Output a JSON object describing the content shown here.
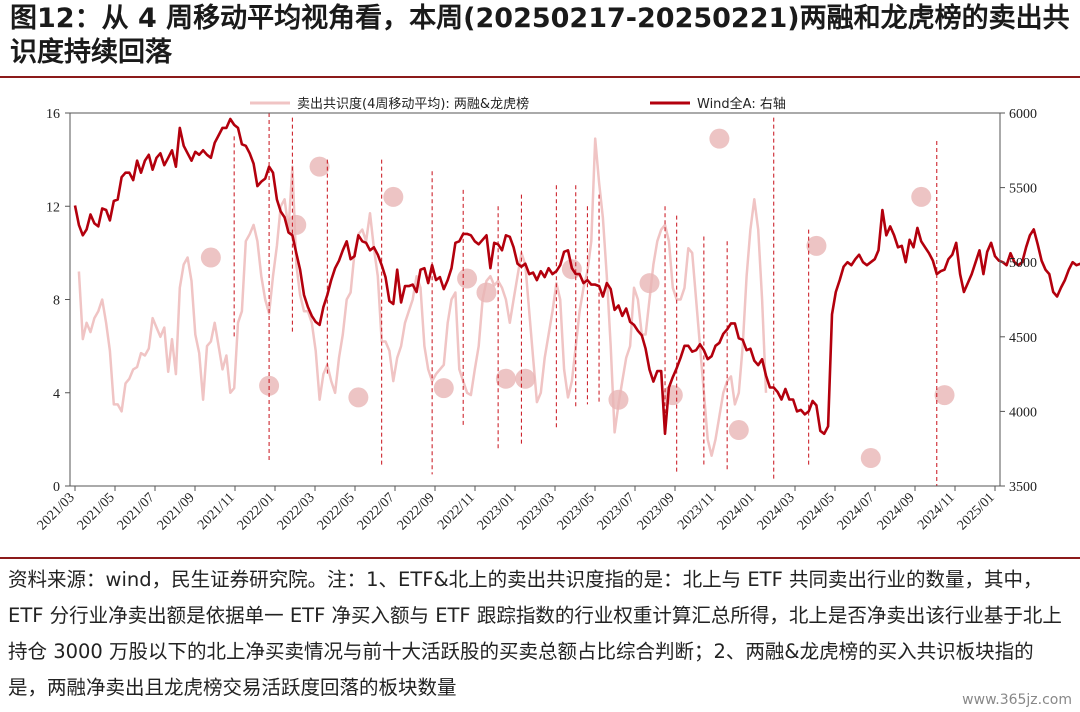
{
  "title": "图12：从 4 周移动平均视角看，本周(20250217-20250221)两融和龙虎榜的卖出共识度持续回落",
  "note": "资料来源：wind，民生证券研究院。注：1、ETF&北上的卖出共识度指的是：北上与 ETF 共同卖出行业的数量，其中，ETF 分行业净卖出额是依据单一 ETF 净买入额与 ETF 跟踪指数的行业权重计算汇总所得，北上是否净卖出该行业基于北上持仓 3000 万股以下的北上净买卖情况与前十大活跃股的买卖总额占比综合判断；2、两融&龙虎榜的买入共识板块指的是，两融净卖出且龙虎榜交易活跃度回落的板块数量",
  "watermark": "www.365jz.com",
  "colors": {
    "consensus": "#f0c4c4",
    "wind": "#b3000d",
    "vline": "#c8101a",
    "circle": "#e9b5b5",
    "rule": "#8c1a1a"
  },
  "chart_data": {
    "type": "line",
    "x_tick_labels": [
      "2021/03",
      "2021/05",
      "2021/07",
      "2021/09",
      "2021/11",
      "2022/01",
      "2022/03",
      "2022/05",
      "2022/07",
      "2022/09",
      "2022/11",
      "2023/01",
      "2023/03",
      "2023/05",
      "2023/07",
      "2023/09",
      "2023/11",
      "2024/01",
      "2024/03",
      "2024/05",
      "2024/07",
      "2024/09",
      "2024/11",
      "2025/01"
    ],
    "left_axis": {
      "ylim": [
        0,
        16
      ],
      "ticks": [
        0,
        4,
        8,
        12,
        16
      ]
    },
    "right_axis": {
      "ylim": [
        3500,
        6000
      ],
      "ticks": [
        3500,
        4000,
        4500,
        5000,
        5500,
        6000
      ]
    },
    "grid": false,
    "legend_position": "top-center",
    "series": [
      {
        "name": "卖出共识度(4周移动平均): 两融&龙虎榜",
        "axis": "left",
        "start_week": 1,
        "values": [
          9.2,
          6.3,
          7.0,
          6.6,
          7.2,
          7.5,
          8.0,
          7.0,
          5.8,
          3.5,
          3.5,
          3.2,
          4.4,
          4.6,
          5.0,
          5.1,
          5.7,
          5.6,
          5.9,
          7.2,
          6.8,
          6.4,
          6.8,
          4.9,
          6.3,
          4.8,
          8.5,
          9.5,
          9.8,
          8.8,
          6.5,
          5.7,
          3.7,
          6.0,
          6.2,
          7.0,
          6.0,
          5.0,
          5.6,
          4.0,
          4.2,
          7.0,
          7.5,
          10.5,
          10.8,
          11.2,
          10.5,
          9.0,
          8.0,
          7.4,
          9.0,
          10.3,
          12.0,
          12.3,
          11.0,
          13.7,
          9.5,
          8.2,
          7.5,
          7.5,
          7.0,
          5.8,
          3.7,
          4.8,
          5.2,
          4.5,
          4.0,
          5.5,
          6.5,
          8.0,
          8.3,
          10.0,
          10.8,
          11.0,
          10.5,
          11.7,
          10.2,
          9.0,
          6.2,
          6.2,
          5.8,
          4.5,
          5.5,
          6.0,
          7.0,
          7.5,
          8.0,
          9.0,
          8.5,
          6.0,
          5.0,
          4.5,
          4.8,
          5.0,
          5.2,
          7.0,
          8.0,
          8.3,
          5.0,
          4.5,
          4.0,
          3.9,
          5.0,
          6.0,
          8.0,
          8.8,
          9.0,
          8.6,
          8.8,
          8.5,
          8.0,
          7.0,
          8.0,
          9.0,
          10.0,
          9.5,
          7.5,
          5.5,
          3.6,
          4.0,
          5.5,
          6.5,
          7.5,
          8.7,
          8.0,
          5.0,
          3.8,
          4.5,
          6.0,
          7.5,
          8.5,
          9.2,
          10.5,
          14.9,
          13.0,
          11.5,
          9.0,
          6.0,
          2.3,
          3.5,
          4.5,
          5.5,
          6.0,
          8.5,
          8.0,
          6.5,
          6.5,
          8.0,
          9.5,
          10.5,
          11.0,
          11.2,
          10.5,
          8.5,
          8.0,
          8.0,
          8.5,
          10.2,
          10.0,
          8.0,
          6.0,
          4.0,
          2.0,
          1.3,
          2.0,
          3.0,
          4.0,
          4.5,
          4.7,
          3.5,
          4.0,
          6.0,
          9.0,
          11.0,
          12.3,
          11.0,
          8.0,
          4.0
        ]
      },
      {
        "name": "Wind全A: 右轴",
        "axis": "right",
        "start_week": 0,
        "values": [
          5380,
          5250,
          5180,
          5220,
          5320,
          5260,
          5240,
          5360,
          5350,
          5280,
          5410,
          5420,
          5570,
          5600,
          5600,
          5550,
          5680,
          5600,
          5680,
          5720,
          5620,
          5700,
          5730,
          5650,
          5700,
          5750,
          5640,
          5900,
          5780,
          5730,
          5680,
          5740,
          5720,
          5750,
          5720,
          5700,
          5800,
          5850,
          5900,
          5900,
          5960,
          5920,
          5900,
          5790,
          5780,
          5730,
          5660,
          5510,
          5540,
          5560,
          5640,
          5600,
          5420,
          5340,
          5300,
          5200,
          5180,
          5060,
          4950,
          4780,
          4700,
          4640,
          4600,
          4580,
          4700,
          4780,
          4880,
          4960,
          5010,
          5080,
          5140,
          5020,
          5040,
          5180,
          5140,
          5130,
          5080,
          5100,
          5050,
          4980,
          4900,
          4740,
          4720,
          4950,
          4730,
          4840,
          4840,
          4850,
          4800,
          4950,
          4960,
          4860,
          4980,
          4880,
          4900,
          4820,
          4880,
          4960,
          5130,
          5140,
          5190,
          5190,
          5180,
          5140,
          5120,
          5150,
          5180,
          4960,
          5130,
          5120,
          5080,
          5180,
          5170,
          5100,
          4990,
          4970,
          4990,
          4920,
          4930,
          4880,
          4940,
          4900,
          4960,
          4920,
          4940,
          4980,
          5070,
          5080,
          4960,
          4920,
          4920,
          4860,
          4880,
          4850,
          4850,
          4840,
          4770,
          4860,
          4820,
          4680,
          4710,
          4640,
          4690,
          4600,
          4580,
          4540,
          4510,
          4420,
          4280,
          4200,
          4270,
          4270,
          3850,
          4160,
          4230,
          4290,
          4360,
          4440,
          4440,
          4400,
          4410,
          4450,
          4410,
          4350,
          4370,
          4440,
          4460,
          4520,
          4550,
          4590,
          4590,
          4490,
          4480,
          4410,
          4420,
          4340,
          4310,
          4350,
          4240,
          4160,
          4160,
          4130,
          4080,
          4150,
          4080,
          4080,
          4000,
          4010,
          3980,
          4000,
          4070,
          4040,
          3870,
          3850,
          3900,
          4650,
          4800,
          4880,
          4970,
          5000,
          4980,
          5020,
          5050,
          5000,
          4980,
          5000,
          5020,
          5080,
          5350,
          5180,
          5240,
          5180,
          5100,
          5110,
          5000,
          5150,
          5100,
          5230,
          5140,
          5100,
          5060,
          5010,
          4920,
          4940,
          4950,
          5020,
          5050,
          5130,
          4920,
          4800,
          4860,
          4920,
          5000,
          5080,
          4920,
          5070,
          5130,
          5040,
          5010,
          5000,
          4980,
          5060,
          5000,
          4980,
          5000,
          5100,
          5180,
          5220,
          5120,
          5010,
          4950,
          4920,
          4800,
          4770,
          4830,
          4880,
          4950,
          5000,
          4980,
          4990,
          4980,
          5120,
          5230
        ]
      }
    ],
    "highlight_points": [
      [
        35,
        9.8
      ],
      [
        50,
        4.3
      ],
      [
        57,
        11.2
      ],
      [
        63,
        13.7
      ],
      [
        73,
        3.8
      ],
      [
        82,
        12.4
      ],
      [
        95,
        4.2
      ],
      [
        101,
        8.9
      ],
      [
        106,
        8.3
      ],
      [
        111,
        4.6
      ],
      [
        116,
        4.6
      ],
      [
        128,
        9.3
      ],
      [
        140,
        3.7
      ],
      [
        148,
        8.7
      ],
      [
        154,
        3.9
      ],
      [
        166,
        14.9
      ],
      [
        171,
        2.4
      ],
      [
        191,
        10.3
      ],
      [
        205,
        1.2
      ],
      [
        218,
        12.4
      ],
      [
        224,
        3.9
      ]
    ],
    "event_markers": [
      {
        "week": 41,
        "top": 15.0,
        "bottom": 6.4
      },
      {
        "week": 50,
        "top": 16.0,
        "bottom": 1.0
      },
      {
        "week": 56,
        "top": 15.8,
        "bottom": 6.5
      },
      {
        "week": 65,
        "top": 14.0,
        "bottom": 4.8
      },
      {
        "week": 79,
        "top": 14.0,
        "bottom": 0.8
      },
      {
        "week": 92,
        "top": 13.5,
        "bottom": 0.5
      },
      {
        "week": 100,
        "top": 12.7,
        "bottom": 2.6
      },
      {
        "week": 109,
        "top": 12.0,
        "bottom": 1.5
      },
      {
        "week": 115,
        "top": 12.5,
        "bottom": 1.7
      },
      {
        "week": 124,
        "top": 12.9,
        "bottom": 2.5
      },
      {
        "week": 129,
        "top": 12.9,
        "bottom": 3.4
      },
      {
        "week": 132,
        "top": 12.0,
        "bottom": 3.5
      },
      {
        "week": 135,
        "top": 12.5,
        "bottom": 3.5
      },
      {
        "week": 152,
        "top": 12.0,
        "bottom": 2.4
      },
      {
        "week": 155,
        "top": 11.6,
        "bottom": 0.5
      },
      {
        "week": 162,
        "top": 10.7,
        "bottom": 0.8
      },
      {
        "week": 168,
        "top": 10.5,
        "bottom": 0.6
      },
      {
        "week": 180,
        "top": 15.8,
        "bottom": 0.2
      },
      {
        "week": 189,
        "top": 11.0,
        "bottom": 0.8
      },
      {
        "week": 222,
        "top": 14.8,
        "bottom": 0.0
      }
    ],
    "week_count": 238
  }
}
